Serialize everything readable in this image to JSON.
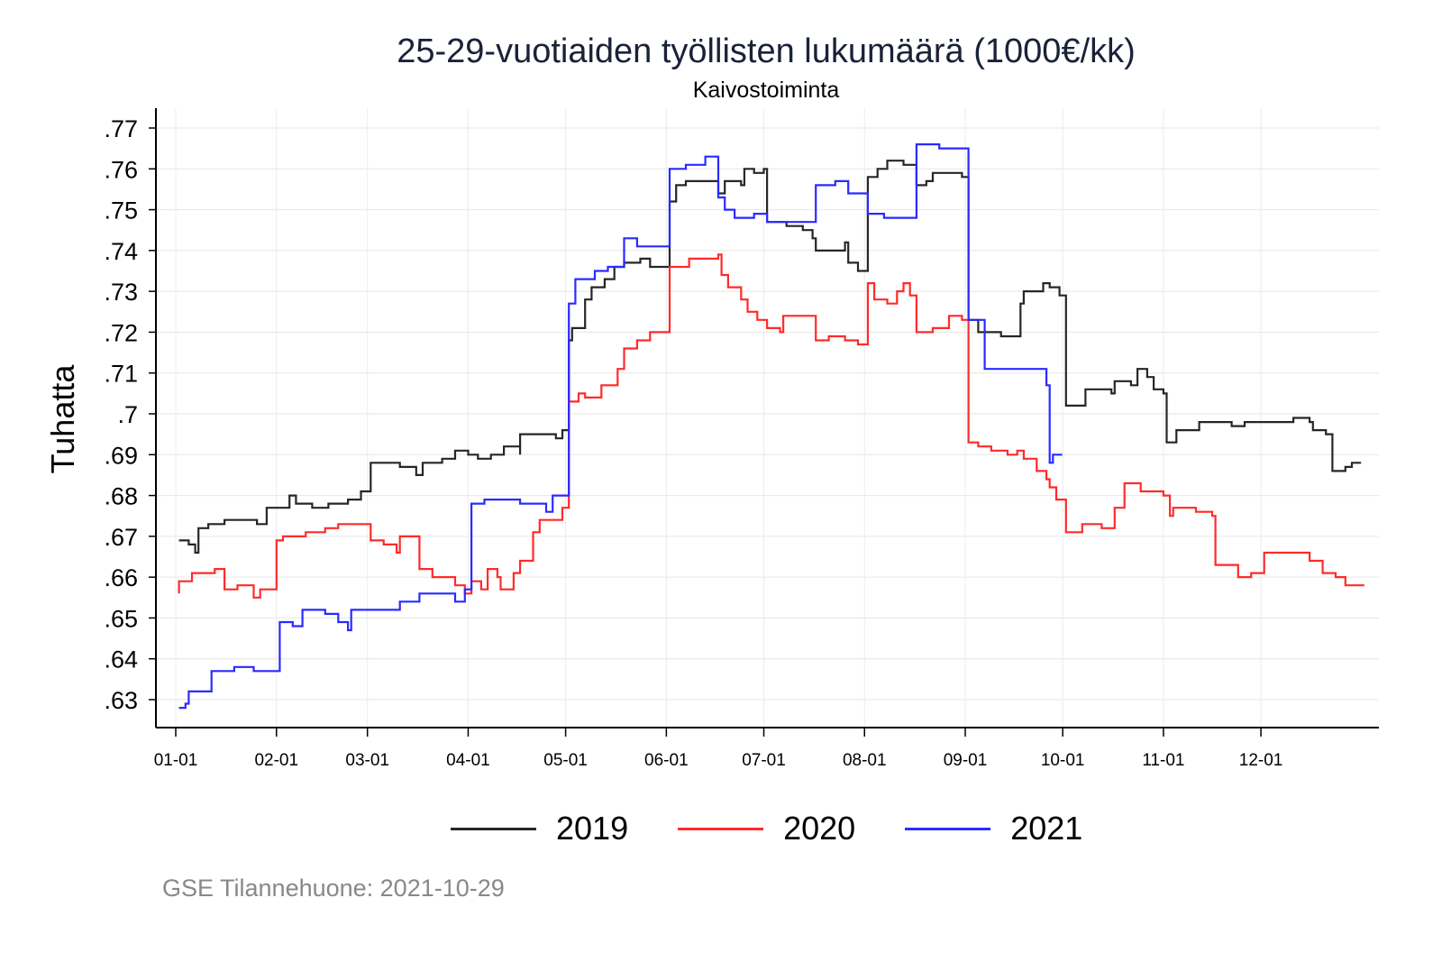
{
  "chart_data": {
    "type": "line",
    "title": "25-29-vuotiaiden työllisten lukumäärä (1000€/kk)",
    "subtitle": "Kaivostoiminta",
    "ylabel": "Tuhatta",
    "xlabel": "",
    "ylim": [
      0.63,
      0.77
    ],
    "yticks": [
      {
        "value": 0.63,
        "label": ".63"
      },
      {
        "value": 0.64,
        "label": ".64"
      },
      {
        "value": 0.65,
        "label": ".65"
      },
      {
        "value": 0.66,
        "label": ".66"
      },
      {
        "value": 0.67,
        "label": ".67"
      },
      {
        "value": 0.68,
        "label": ".68"
      },
      {
        "value": 0.69,
        "label": ".69"
      },
      {
        "value": 0.7,
        "label": ".7"
      },
      {
        "value": 0.71,
        "label": ".71"
      },
      {
        "value": 0.72,
        "label": ".72"
      },
      {
        "value": 0.73,
        "label": ".73"
      },
      {
        "value": 0.74,
        "label": ".74"
      },
      {
        "value": 0.75,
        "label": ".75"
      },
      {
        "value": 0.76,
        "label": ".76"
      },
      {
        "value": 0.77,
        "label": ".77"
      }
    ],
    "xticks": [
      {
        "day": 0,
        "label": "01-01"
      },
      {
        "day": 31,
        "label": "02-01"
      },
      {
        "day": 59,
        "label": "03-01"
      },
      {
        "day": 90,
        "label": "04-01"
      },
      {
        "day": 120,
        "label": "05-01"
      },
      {
        "day": 151,
        "label": "06-01"
      },
      {
        "day": 181,
        "label": "07-01"
      },
      {
        "day": 212,
        "label": "08-01"
      },
      {
        "day": 243,
        "label": "09-01"
      },
      {
        "day": 273,
        "label": "10-01"
      },
      {
        "day": 304,
        "label": "11-01"
      },
      {
        "day": 334,
        "label": "12-01"
      }
    ],
    "grid": true,
    "legend_position": "bottom",
    "series": [
      {
        "name": "2019",
        "color": "#262626",
        "points": [
          [
            1,
            0.669
          ],
          [
            4,
            0.668
          ],
          [
            6,
            0.666
          ],
          [
            7,
            0.672
          ],
          [
            10,
            0.673
          ],
          [
            15,
            0.674
          ],
          [
            19,
            0.674
          ],
          [
            25,
            0.673
          ],
          [
            28,
            0.677
          ],
          [
            35,
            0.68
          ],
          [
            37,
            0.678
          ],
          [
            42,
            0.677
          ],
          [
            47,
            0.678
          ],
          [
            53,
            0.679
          ],
          [
            57,
            0.681
          ],
          [
            60,
            0.688
          ],
          [
            65,
            0.688
          ],
          [
            69,
            0.687
          ],
          [
            74,
            0.685
          ],
          [
            76,
            0.688
          ],
          [
            82,
            0.689
          ],
          [
            86,
            0.691
          ],
          [
            90,
            0.69
          ],
          [
            93,
            0.689
          ],
          [
            97,
            0.69
          ],
          [
            101,
            0.692
          ],
          [
            106,
            0.69
          ],
          [
            106,
            0.695
          ],
          [
            112,
            0.695
          ],
          [
            117,
            0.694
          ],
          [
            119,
            0.696
          ],
          [
            121,
            0.718
          ],
          [
            122,
            0.721
          ],
          [
            126,
            0.728
          ],
          [
            128,
            0.731
          ],
          [
            132,
            0.733
          ],
          [
            135,
            0.736
          ],
          [
            138,
            0.737
          ],
          [
            143,
            0.738
          ],
          [
            146,
            0.736
          ],
          [
            150,
            0.736
          ],
          [
            152,
            0.752
          ],
          [
            154,
            0.756
          ],
          [
            157,
            0.757
          ],
          [
            167,
            0.757
          ],
          [
            167,
            0.754
          ],
          [
            169,
            0.757
          ],
          [
            174,
            0.756
          ],
          [
            175,
            0.76
          ],
          [
            178,
            0.759
          ],
          [
            181,
            0.76
          ],
          [
            182,
            0.747
          ],
          [
            188,
            0.746
          ],
          [
            193,
            0.745
          ],
          [
            196,
            0.743
          ],
          [
            197,
            0.74
          ],
          [
            203,
            0.74
          ],
          [
            206,
            0.742
          ],
          [
            207,
            0.737
          ],
          [
            210,
            0.735
          ],
          [
            213,
            0.758
          ],
          [
            216,
            0.76
          ],
          [
            219,
            0.762
          ],
          [
            224,
            0.761
          ],
          [
            228,
            0.756
          ],
          [
            231,
            0.757
          ],
          [
            233,
            0.759
          ],
          [
            238,
            0.759
          ],
          [
            242,
            0.758
          ],
          [
            244,
            0.723
          ],
          [
            247,
            0.72
          ],
          [
            254,
            0.719
          ],
          [
            259,
            0.719
          ],
          [
            260,
            0.727
          ],
          [
            261,
            0.73
          ],
          [
            267,
            0.732
          ],
          [
            269,
            0.731
          ],
          [
            272,
            0.729
          ],
          [
            274,
            0.702
          ],
          [
            279,
            0.702
          ],
          [
            280,
            0.706
          ],
          [
            285,
            0.706
          ],
          [
            288,
            0.705
          ],
          [
            289,
            0.708
          ],
          [
            294,
            0.707
          ],
          [
            296,
            0.711
          ],
          [
            299,
            0.709
          ],
          [
            301,
            0.706
          ],
          [
            304,
            0.705
          ],
          [
            305,
            0.693
          ],
          [
            308,
            0.696
          ],
          [
            314,
            0.696
          ],
          [
            315,
            0.698
          ],
          [
            319,
            0.698
          ],
          [
            325,
            0.697
          ],
          [
            329,
            0.698
          ],
          [
            332,
            0.698
          ],
          [
            338,
            0.698
          ],
          [
            344,
            0.699
          ],
          [
            349,
            0.698
          ],
          [
            350,
            0.696
          ],
          [
            354,
            0.695
          ],
          [
            356,
            0.692
          ],
          [
            356,
            0.686
          ],
          [
            360,
            0.687
          ],
          [
            362,
            0.688
          ],
          [
            364,
            0.688
          ]
        ]
      },
      {
        "name": "2020",
        "color": "#ff2a2a",
        "points": [
          [
            1,
            0.656
          ],
          [
            1,
            0.659
          ],
          [
            5,
            0.661
          ],
          [
            10,
            0.661
          ],
          [
            12,
            0.662
          ],
          [
            15,
            0.657
          ],
          [
            19,
            0.658
          ],
          [
            24,
            0.655
          ],
          [
            26,
            0.657
          ],
          [
            31,
            0.658
          ],
          [
            31,
            0.669
          ],
          [
            33,
            0.67
          ],
          [
            39,
            0.67
          ],
          [
            40,
            0.671
          ],
          [
            46,
            0.672
          ],
          [
            50,
            0.673
          ],
          [
            60,
            0.669
          ],
          [
            64,
            0.668
          ],
          [
            68,
            0.666
          ],
          [
            69,
            0.67
          ],
          [
            75,
            0.662
          ],
          [
            79,
            0.66
          ],
          [
            83,
            0.66
          ],
          [
            86,
            0.658
          ],
          [
            89,
            0.656
          ],
          [
            91,
            0.659
          ],
          [
            94,
            0.657
          ],
          [
            96,
            0.662
          ],
          [
            99,
            0.66
          ],
          [
            100,
            0.657
          ],
          [
            104,
            0.661
          ],
          [
            106,
            0.664
          ],
          [
            110,
            0.671
          ],
          [
            112,
            0.674
          ],
          [
            117,
            0.674
          ],
          [
            119,
            0.677
          ],
          [
            121,
            0.703
          ],
          [
            124,
            0.705
          ],
          [
            126,
            0.704
          ],
          [
            131,
            0.707
          ],
          [
            136,
            0.711
          ],
          [
            138,
            0.716
          ],
          [
            142,
            0.718
          ],
          [
            146,
            0.72
          ],
          [
            152,
            0.736
          ],
          [
            158,
            0.738
          ],
          [
            167,
            0.739
          ],
          [
            168,
            0.734
          ],
          [
            170,
            0.731
          ],
          [
            174,
            0.728
          ],
          [
            176,
            0.725
          ],
          [
            179,
            0.723
          ],
          [
            182,
            0.721
          ],
          [
            186,
            0.72
          ],
          [
            187,
            0.724
          ],
          [
            194,
            0.724
          ],
          [
            197,
            0.718
          ],
          [
            201,
            0.719
          ],
          [
            206,
            0.718
          ],
          [
            210,
            0.717
          ],
          [
            213,
            0.732
          ],
          [
            215,
            0.728
          ],
          [
            219,
            0.727
          ],
          [
            222,
            0.73
          ],
          [
            224,
            0.732
          ],
          [
            226,
            0.729
          ],
          [
            228,
            0.72
          ],
          [
            233,
            0.721
          ],
          [
            238,
            0.724
          ],
          [
            242,
            0.723
          ],
          [
            244,
            0.693
          ],
          [
            247,
            0.692
          ],
          [
            251,
            0.691
          ],
          [
            256,
            0.69
          ],
          [
            259,
            0.691
          ],
          [
            261,
            0.689
          ],
          [
            265,
            0.686
          ],
          [
            268,
            0.684
          ],
          [
            269,
            0.682
          ],
          [
            271,
            0.679
          ],
          [
            274,
            0.671
          ],
          [
            278,
            0.671
          ],
          [
            279,
            0.673
          ],
          [
            285,
            0.672
          ],
          [
            289,
            0.677
          ],
          [
            292,
            0.683
          ],
          [
            297,
            0.681
          ],
          [
            304,
            0.68
          ],
          [
            306,
            0.675
          ],
          [
            307,
            0.677
          ],
          [
            314,
            0.676
          ],
          [
            319,
            0.675
          ],
          [
            320,
            0.663
          ],
          [
            324,
            0.663
          ],
          [
            327,
            0.66
          ],
          [
            331,
            0.661
          ],
          [
            335,
            0.666
          ],
          [
            346,
            0.666
          ],
          [
            349,
            0.664
          ],
          [
            353,
            0.661
          ],
          [
            357,
            0.66
          ],
          [
            360,
            0.658
          ],
          [
            365,
            0.658
          ]
        ]
      },
      {
        "name": "2021",
        "color": "#2a2aff",
        "points": [
          [
            1,
            0.628
          ],
          [
            3,
            0.629
          ],
          [
            4,
            0.632
          ],
          [
            11,
            0.637
          ],
          [
            18,
            0.638
          ],
          [
            24,
            0.637
          ],
          [
            29,
            0.637
          ],
          [
            32,
            0.649
          ],
          [
            36,
            0.648
          ],
          [
            39,
            0.652
          ],
          [
            46,
            0.651
          ],
          [
            50,
            0.649
          ],
          [
            53,
            0.647
          ],
          [
            54,
            0.652
          ],
          [
            60,
            0.652
          ],
          [
            69,
            0.654
          ],
          [
            75,
            0.656
          ],
          [
            86,
            0.654
          ],
          [
            89,
            0.657
          ],
          [
            91,
            0.678
          ],
          [
            95,
            0.679
          ],
          [
            106,
            0.678
          ],
          [
            114,
            0.676
          ],
          [
            116,
            0.68
          ],
          [
            121,
            0.727
          ],
          [
            123,
            0.733
          ],
          [
            129,
            0.735
          ],
          [
            133,
            0.736
          ],
          [
            138,
            0.743
          ],
          [
            142,
            0.741
          ],
          [
            146,
            0.741
          ],
          [
            152,
            0.76
          ],
          [
            157,
            0.761
          ],
          [
            163,
            0.763
          ],
          [
            167,
            0.753
          ],
          [
            169,
            0.75
          ],
          [
            172,
            0.748
          ],
          [
            178,
            0.749
          ],
          [
            182,
            0.747
          ],
          [
            186,
            0.747
          ],
          [
            197,
            0.756
          ],
          [
            203,
            0.757
          ],
          [
            207,
            0.754
          ],
          [
            213,
            0.749
          ],
          [
            218,
            0.748
          ],
          [
            228,
            0.766
          ],
          [
            235,
            0.765
          ],
          [
            244,
            0.723
          ],
          [
            249,
            0.711
          ],
          [
            260,
            0.711
          ],
          [
            268,
            0.707
          ],
          [
            269,
            0.688
          ],
          [
            270,
            0.69
          ],
          [
            272,
            0.69
          ]
        ]
      }
    ]
  },
  "source": "GSE Tilannehuone: 2021-10-29"
}
